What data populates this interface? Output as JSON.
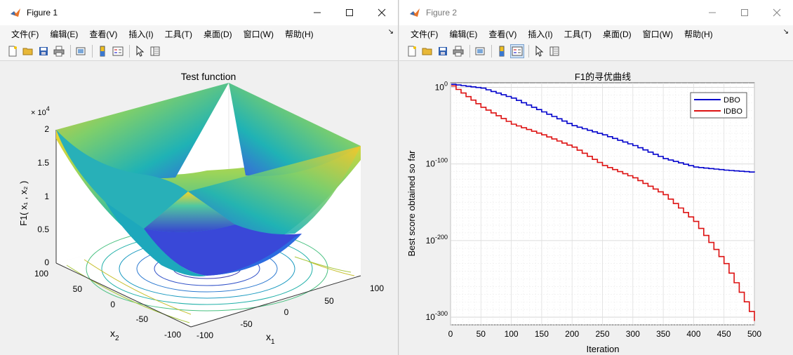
{
  "figure1": {
    "title": "Figure 1",
    "menu": [
      "文件(F)",
      "编辑(E)",
      "查看(V)",
      "插入(I)",
      "工具(T)",
      "桌面(D)",
      "窗口(W)",
      "帮助(H)"
    ],
    "plot": {
      "title": "Test function",
      "zlabel": "F1( x₁ , x₂ )",
      "xlabel": "x",
      "xlabel_sub": "1",
      "ylabel": "x",
      "ylabel_sub": "2",
      "exponent": "× 10",
      "exponent_power": "4",
      "zticks": [
        "2",
        "1.5",
        "1",
        "0.5",
        "0"
      ],
      "x1ticks": [
        "-100",
        "-50",
        "0",
        "50",
        "100"
      ],
      "x2ticks": [
        "100",
        "50",
        "0",
        "-50",
        "-100"
      ]
    }
  },
  "figure2": {
    "title": "Figure 2",
    "menu": [
      "文件(F)",
      "编辑(E)",
      "查看(V)",
      "插入(I)",
      "工具(T)",
      "桌面(D)",
      "窗口(W)",
      "帮助(H)"
    ]
  },
  "chart_data": {
    "type": "line",
    "title": "F1的寻优曲线",
    "xlabel": "Iteration",
    "ylabel": "Best score obtained so far",
    "xlim": [
      0,
      500
    ],
    "ylog": true,
    "ylim_exponents": [
      -310,
      6
    ],
    "xticks": [
      0,
      50,
      100,
      150,
      200,
      250,
      300,
      350,
      400,
      450,
      500
    ],
    "yticks": [
      {
        "base": "10",
        "exp": "0"
      },
      {
        "base": "10",
        "exp": "-100"
      },
      {
        "base": "10",
        "exp": "-200"
      },
      {
        "base": "10",
        "exp": "-300"
      }
    ],
    "grid": true,
    "legend_position": "top-right",
    "series": [
      {
        "name": "DBO",
        "color": "#0000cc",
        "x": [
          1,
          50,
          100,
          150,
          200,
          250,
          300,
          350,
          400,
          450,
          500
        ],
        "log10_y": [
          4,
          -1,
          -14,
          -32,
          -50,
          -62,
          -76,
          -93,
          -104,
          -108,
          -111
        ]
      },
      {
        "name": "IDBO",
        "color": "#dd1111",
        "x": [
          1,
          50,
          100,
          150,
          200,
          250,
          300,
          350,
          400,
          450,
          500
        ],
        "log10_y": [
          2,
          -26,
          -48,
          -62,
          -78,
          -102,
          -118,
          -140,
          -175,
          -230,
          -305
        ]
      }
    ]
  }
}
